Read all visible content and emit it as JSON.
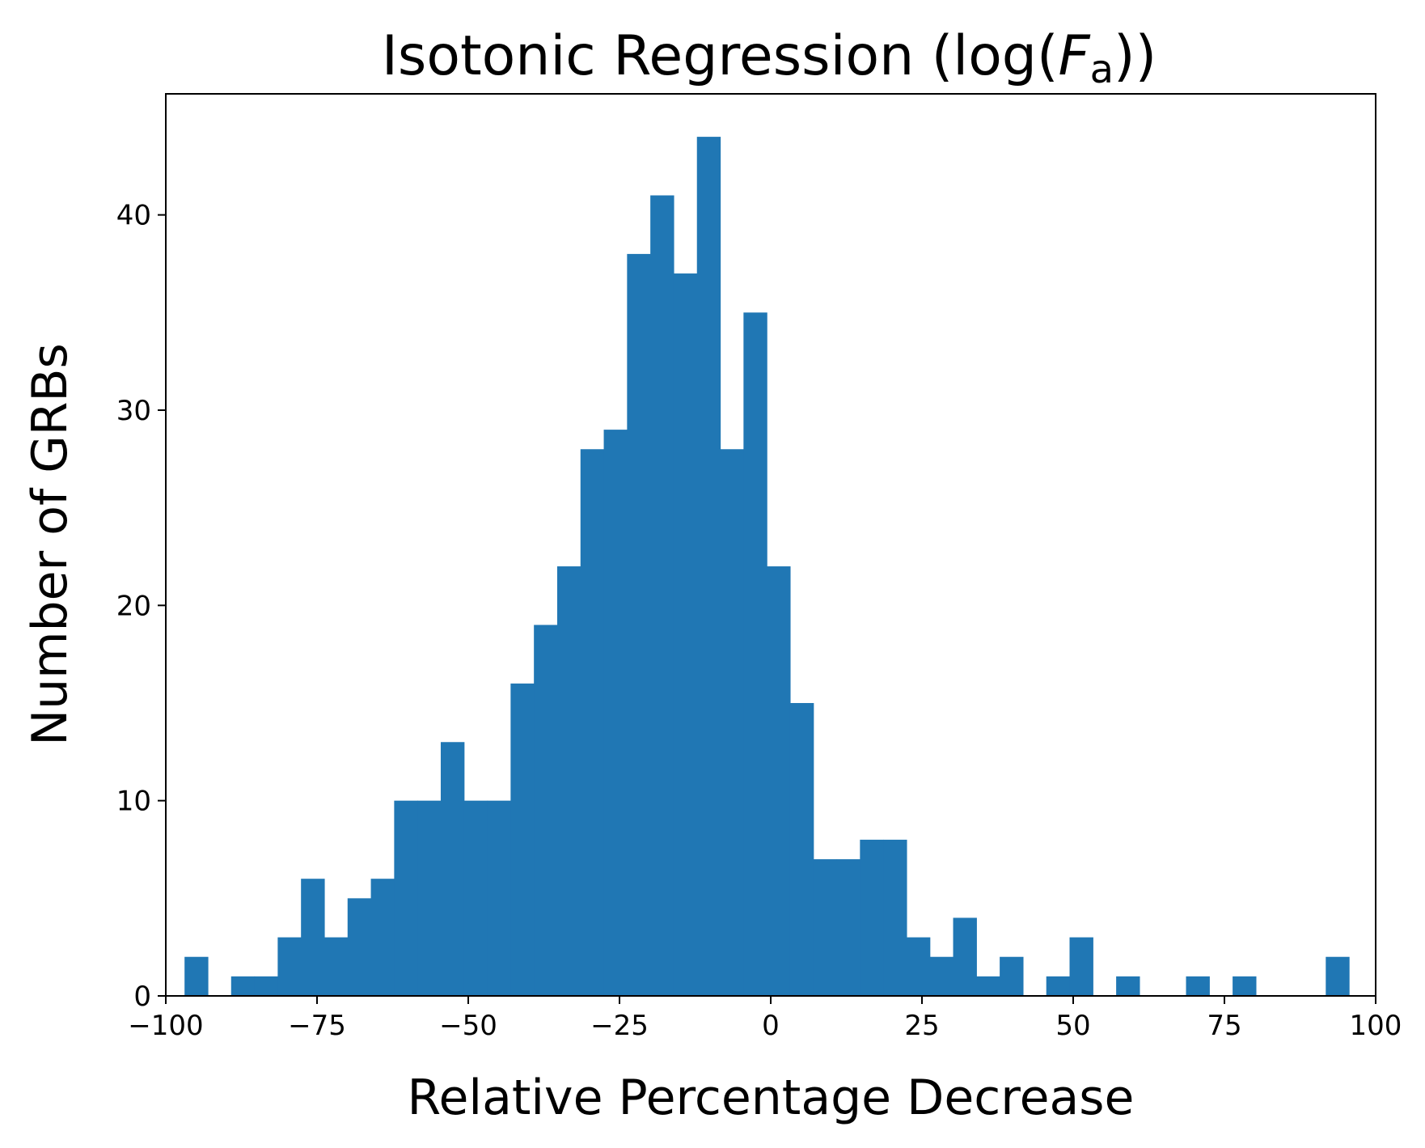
{
  "chart_data": {
    "type": "bar",
    "title": "Isotonic Regression (log(F_a))",
    "title_parts": {
      "prefix": "Isotonic Regression (log(",
      "var": "F",
      "sub": "a",
      "suffix": "))"
    },
    "xlabel": "Relative Percentage Decrease",
    "ylabel": "Number of GRBs",
    "xlim": [
      -100,
      100
    ],
    "ylim": [
      0,
      46.2
    ],
    "xticks": [
      -100,
      -75,
      -50,
      -25,
      0,
      25,
      50,
      75,
      100
    ],
    "xtick_labels": [
      "−100",
      "−75",
      "−50",
      "−25",
      "0",
      "25",
      "50",
      "75",
      "100"
    ],
    "yticks": [
      0,
      10,
      20,
      30,
      40
    ],
    "ytick_labels": [
      "0",
      "10",
      "20",
      "30",
      "40"
    ],
    "bin_edges": [
      -96.9,
      -93.05,
      -89.2,
      -85.35,
      -81.5,
      -77.65,
      -73.8,
      -69.95,
      -66.1,
      -62.25,
      -58.4,
      -54.55,
      -50.7,
      -46.85,
      -43.0,
      -39.15,
      -35.3,
      -31.45,
      -27.6,
      -23.75,
      -19.9,
      -16.05,
      -12.2,
      -8.35,
      -4.5,
      -0.65,
      3.2,
      7.05,
      10.9,
      14.75,
      18.6,
      22.45,
      26.3,
      30.15,
      34.0,
      37.85,
      41.7,
      45.55,
      49.4,
      53.25,
      57.1,
      60.95,
      64.8,
      68.65,
      72.5,
      76.35,
      80.2,
      84.05,
      87.9,
      91.75,
      95.6
    ],
    "values": [
      2,
      0,
      1,
      1,
      3,
      6,
      3,
      5,
      6,
      10,
      10,
      13,
      10,
      10,
      16,
      19,
      22,
      28,
      29,
      38,
      41,
      37,
      44,
      28,
      35,
      22,
      15,
      7,
      7,
      8,
      8,
      3,
      2,
      4,
      1,
      2,
      0,
      1,
      3,
      0,
      1,
      0,
      0,
      1,
      0,
      1,
      0,
      0,
      0,
      2
    ],
    "color": "#2077b4",
    "grid": false,
    "legend": "none"
  }
}
